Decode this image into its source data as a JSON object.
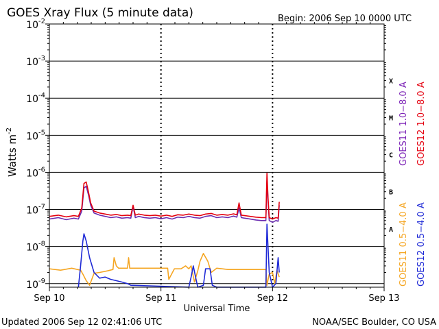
{
  "chart_data": {
    "type": "line",
    "title": "GOES Xray Flux (5 minute data)",
    "begin_label": "Begin:  2006 Sep 10 0000 UTC",
    "xlabel": "Universal Time",
    "ylabel_main": "Watts m",
    "ylabel_exp": "-2",
    "footer_left": "Updated 2006 Sep 12 02:41:06 UTC",
    "footer_right": "NOAA/SEC Boulder, CO USA",
    "y_scale": "log",
    "ylim": [
      8e-10,
      0.01
    ],
    "xlim_days": [
      0,
      3
    ],
    "x_ticks": [
      {
        "label": "Sep 10",
        "day": 0
      },
      {
        "label": "Sep 11",
        "day": 1
      },
      {
        "label": "Sep 12",
        "day": 2
      },
      {
        "label": "Sep 13",
        "day": 3
      }
    ],
    "y_ticks": [
      {
        "base": "10",
        "exp": "-2",
        "value": 0.01
      },
      {
        "base": "10",
        "exp": "-3",
        "value": 0.001
      },
      {
        "base": "10",
        "exp": "-4",
        "value": 0.0001
      },
      {
        "base": "10",
        "exp": "-5",
        "value": 1e-05
      },
      {
        "base": "10",
        "exp": "-6",
        "value": 1e-06
      },
      {
        "base": "10",
        "exp": "-7",
        "value": 1e-07
      },
      {
        "base": "10",
        "exp": "-8",
        "value": 1e-08
      },
      {
        "base": "10",
        "exp": "-9",
        "value": 1e-09
      }
    ],
    "flare_classes": [
      {
        "label": "X",
        "value": 0.0003
      },
      {
        "label": "M",
        "value": 3e-05
      },
      {
        "label": "C",
        "value": 3e-06
      },
      {
        "label": "B",
        "value": 3e-07
      },
      {
        "label": "A",
        "value": 3e-08
      }
    ],
    "legend_groups": [
      {
        "entries": [
          {
            "label": "GOES11 1.0−8.0 A",
            "color": "#7b22b6"
          },
          {
            "label": "GOES12 1.0−8.0 A",
            "color": "#e4000f"
          }
        ]
      },
      {
        "entries": [
          {
            "label": "GOES11 0.5−4.0 A",
            "color": "#f5a623"
          },
          {
            "label": "GOES12 0.5−4.0 A",
            "color": "#1f2ad6"
          }
        ]
      }
    ],
    "series": [
      {
        "name": "GOES11 1.0−8.0 A",
        "color": "#6a2cb0",
        "points": [
          [
            0.0,
            5.5e-08
          ],
          [
            0.08,
            6e-08
          ],
          [
            0.15,
            5.3e-08
          ],
          [
            0.22,
            5.8e-08
          ],
          [
            0.26,
            5.5e-08
          ],
          [
            0.29,
            9e-08
          ],
          [
            0.31,
            3.8e-07
          ],
          [
            0.33,
            4.2e-07
          ],
          [
            0.35,
            2.5e-07
          ],
          [
            0.37,
            1.3e-07
          ],
          [
            0.4,
            8e-08
          ],
          [
            0.45,
            7e-08
          ],
          [
            0.5,
            6.5e-08
          ],
          [
            0.55,
            6e-08
          ],
          [
            0.6,
            6.3e-08
          ],
          [
            0.65,
            5.8e-08
          ],
          [
            0.7,
            6e-08
          ],
          [
            0.73,
            5.8e-08
          ],
          [
            0.75,
            1.2e-07
          ],
          [
            0.77,
            6e-08
          ],
          [
            0.8,
            6.5e-08
          ],
          [
            0.85,
            6e-08
          ],
          [
            0.9,
            5.8e-08
          ],
          [
            0.95,
            6e-08
          ],
          [
            1.0,
            5.6e-08
          ],
          [
            1.05,
            6e-08
          ],
          [
            1.1,
            5.5e-08
          ],
          [
            1.15,
            6.2e-08
          ],
          [
            1.2,
            6e-08
          ],
          [
            1.25,
            6.5e-08
          ],
          [
            1.3,
            6e-08
          ],
          [
            1.35,
            5.8e-08
          ],
          [
            1.4,
            6.5e-08
          ],
          [
            1.45,
            6.8e-08
          ],
          [
            1.5,
            6e-08
          ],
          [
            1.55,
            6.3e-08
          ],
          [
            1.6,
            6e-08
          ],
          [
            1.65,
            6.6e-08
          ],
          [
            1.68,
            6.2e-08
          ],
          [
            1.7,
            1.1e-07
          ],
          [
            1.72,
            6e-08
          ],
          [
            1.75,
            5.8e-08
          ],
          [
            1.8,
            5.5e-08
          ],
          [
            1.85,
            5.2e-08
          ],
          [
            1.9,
            5e-08
          ],
          [
            1.94,
            5e-08
          ],
          [
            1.95,
            6e-07
          ],
          [
            1.96,
            1.6e-07
          ],
          [
            1.97,
            5e-08
          ],
          [
            2.0,
            4.5e-08
          ],
          [
            2.03,
            5e-08
          ],
          [
            2.05,
            4.8e-08
          ],
          [
            2.06,
            1.3e-07
          ]
        ]
      },
      {
        "name": "GOES12 1.0−8.0 A",
        "color": "#e4000f",
        "points": [
          [
            0.0,
            6.5e-08
          ],
          [
            0.08,
            7e-08
          ],
          [
            0.15,
            6.3e-08
          ],
          [
            0.22,
            6.8e-08
          ],
          [
            0.26,
            6.5e-08
          ],
          [
            0.29,
            1.1e-07
          ],
          [
            0.31,
            5e-07
          ],
          [
            0.33,
            5.5e-07
          ],
          [
            0.35,
            3e-07
          ],
          [
            0.37,
            1.5e-07
          ],
          [
            0.4,
            9e-08
          ],
          [
            0.45,
            8e-08
          ],
          [
            0.5,
            7.5e-08
          ],
          [
            0.55,
            7e-08
          ],
          [
            0.6,
            7.3e-08
          ],
          [
            0.65,
            6.8e-08
          ],
          [
            0.7,
            7e-08
          ],
          [
            0.73,
            6.8e-08
          ],
          [
            0.75,
            1.3e-07
          ],
          [
            0.77,
            7e-08
          ],
          [
            0.8,
            7.5e-08
          ],
          [
            0.85,
            7e-08
          ],
          [
            0.9,
            6.8e-08
          ],
          [
            0.95,
            7e-08
          ],
          [
            1.0,
            6.6e-08
          ],
          [
            1.05,
            7e-08
          ],
          [
            1.1,
            6.5e-08
          ],
          [
            1.15,
            7.2e-08
          ],
          [
            1.2,
            7e-08
          ],
          [
            1.25,
            7.5e-08
          ],
          [
            1.3,
            7e-08
          ],
          [
            1.35,
            6.8e-08
          ],
          [
            1.4,
            7.5e-08
          ],
          [
            1.45,
            7.8e-08
          ],
          [
            1.5,
            7e-08
          ],
          [
            1.55,
            7.3e-08
          ],
          [
            1.6,
            7e-08
          ],
          [
            1.65,
            7.6e-08
          ],
          [
            1.68,
            7.2e-08
          ],
          [
            1.7,
            1.5e-07
          ],
          [
            1.72,
            7e-08
          ],
          [
            1.75,
            6.8e-08
          ],
          [
            1.8,
            6.5e-08
          ],
          [
            1.85,
            6.2e-08
          ],
          [
            1.9,
            6e-08
          ],
          [
            1.94,
            6e-08
          ],
          [
            1.95,
            9.5e-07
          ],
          [
            1.96,
            2e-07
          ],
          [
            1.97,
            6e-08
          ],
          [
            2.0,
            5.5e-08
          ],
          [
            2.03,
            6e-08
          ],
          [
            2.05,
            5.8e-08
          ],
          [
            2.06,
            1.6e-07
          ]
        ]
      },
      {
        "name": "GOES11 0.5−4.0 A",
        "color": "#f5a623",
        "points": [
          [
            0.0,
            2.5e-09
          ],
          [
            0.1,
            2.3e-09
          ],
          [
            0.2,
            2.6e-09
          ],
          [
            0.28,
            2.3e-09
          ],
          [
            0.3,
            1.8e-09
          ],
          [
            0.33,
            1.2e-09
          ],
          [
            0.36,
            9e-10
          ],
          [
            0.4,
            1.9e-09
          ],
          [
            0.45,
            2e-09
          ],
          [
            0.52,
            2.2e-09
          ],
          [
            0.57,
            2.4e-09
          ],
          [
            0.58,
            5e-09
          ],
          [
            0.6,
            3e-09
          ],
          [
            0.62,
            2.6e-09
          ],
          [
            0.7,
            2.6e-09
          ],
          [
            0.71,
            5e-09
          ],
          [
            0.72,
            2.6e-09
          ],
          [
            0.8,
            2.6e-09
          ],
          [
            0.9,
            2.6e-09
          ],
          [
            1.0,
            2.6e-09
          ],
          [
            1.06,
            2.6e-09
          ],
          [
            1.07,
            1.3e-09
          ],
          [
            1.12,
            2.5e-09
          ],
          [
            1.18,
            2.5e-09
          ],
          [
            1.22,
            3e-09
          ],
          [
            1.25,
            2.5e-09
          ],
          [
            1.27,
            3e-09
          ],
          [
            1.3,
            1.1e-09
          ],
          [
            1.33,
            2.2e-09
          ],
          [
            1.35,
            4e-09
          ],
          [
            1.38,
            6.5e-09
          ],
          [
            1.42,
            4e-09
          ],
          [
            1.45,
            2e-09
          ],
          [
            1.5,
            2.6e-09
          ],
          [
            1.55,
            2.5e-09
          ],
          [
            1.6,
            2.4e-09
          ],
          [
            1.7,
            2.4e-09
          ],
          [
            1.8,
            2.4e-09
          ],
          [
            1.9,
            2.4e-09
          ],
          [
            1.94,
            2.4e-09
          ],
          [
            1.95,
            9e-10
          ],
          [
            1.97,
            1.8e-09
          ],
          [
            2.0,
            2e-09
          ],
          [
            2.02,
            1e-09
          ],
          [
            2.04,
            2.3e-09
          ],
          [
            2.06,
            1.5e-09
          ]
        ]
      },
      {
        "name": "GOES12 0.5−4.0 A",
        "color": "#1f2ad6",
        "points": [
          [
            0.26,
            8e-10
          ],
          [
            0.28,
            3e-09
          ],
          [
            0.3,
            1.4e-08
          ],
          [
            0.31,
            2.2e-08
          ],
          [
            0.33,
            1.4e-08
          ],
          [
            0.36,
            5e-09
          ],
          [
            0.4,
            2e-09
          ],
          [
            0.45,
            1.4e-09
          ],
          [
            0.5,
            1.5e-09
          ],
          [
            0.55,
            1.3e-09
          ],
          [
            0.6,
            1.2e-09
          ],
          [
            0.65,
            1.1e-09
          ],
          [
            0.7,
            1e-09
          ],
          [
            0.73,
            9e-10
          ],
          [
            1.25,
            8e-10
          ],
          [
            1.27,
            1.5e-09
          ],
          [
            1.29,
            3e-09
          ],
          [
            1.31,
            1.5e-09
          ],
          [
            1.33,
            8e-10
          ],
          [
            1.38,
            9e-10
          ],
          [
            1.4,
            2.5e-09
          ],
          [
            1.44,
            2.5e-09
          ],
          [
            1.46,
            9e-10
          ],
          [
            1.5,
            8e-10
          ],
          [
            1.94,
            8e-10
          ],
          [
            1.95,
            4e-08
          ],
          [
            1.97,
            2e-09
          ],
          [
            2.0,
            8e-10
          ],
          [
            2.03,
            1e-09
          ],
          [
            2.05,
            5e-09
          ],
          [
            2.06,
            2e-09
          ]
        ]
      }
    ]
  }
}
